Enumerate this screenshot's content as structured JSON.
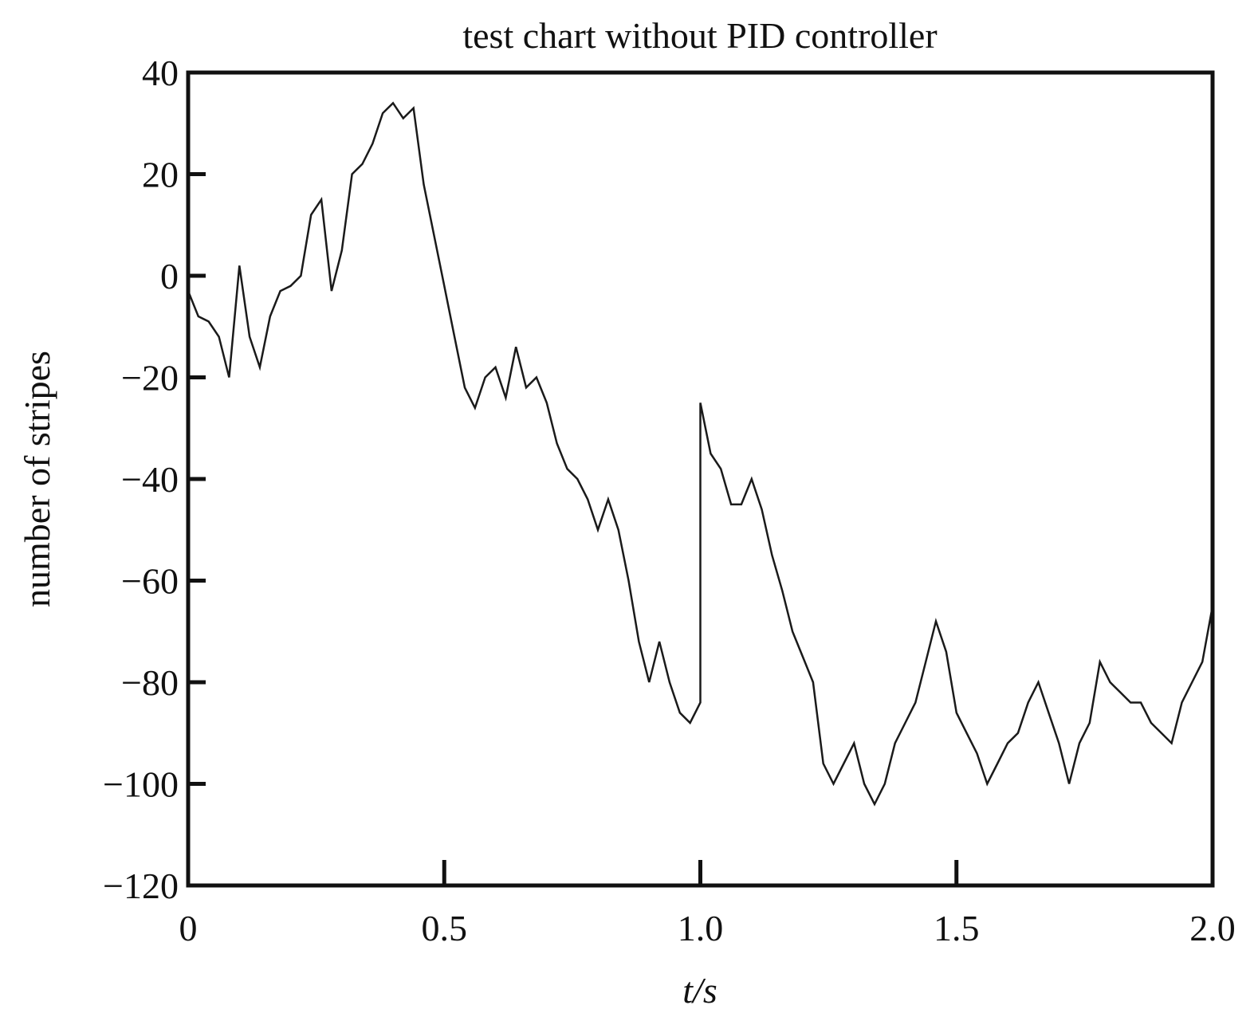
{
  "chart_data": {
    "type": "line",
    "title": "test chart without PID controller",
    "xlabel": "t/s",
    "ylabel": "number of stripes",
    "x": [
      0,
      0.02,
      0.04,
      0.06,
      0.08,
      0.1,
      0.12,
      0.14,
      0.16,
      0.18,
      0.2,
      0.22,
      0.24,
      0.26,
      0.28,
      0.3,
      0.32,
      0.34,
      0.36,
      0.38,
      0.4,
      0.42,
      0.44,
      0.46,
      0.48,
      0.5,
      0.52,
      0.54,
      0.56,
      0.58,
      0.6,
      0.62,
      0.64,
      0.66,
      0.68,
      0.7,
      0.72,
      0.74,
      0.76,
      0.78,
      0.8,
      0.82,
      0.84,
      0.86,
      0.88,
      0.9,
      0.92,
      0.94,
      0.96,
      0.98,
      1,
      1,
      1.02,
      1.04,
      1.06,
      1.08,
      1.1,
      1.12,
      1.14,
      1.16,
      1.18,
      1.2,
      1.22,
      1.24,
      1.26,
      1.28,
      1.3,
      1.32,
      1.34,
      1.36,
      1.38,
      1.4,
      1.42,
      1.44,
      1.46,
      1.48,
      1.5,
      1.52,
      1.54,
      1.56,
      1.58,
      1.6,
      1.62,
      1.64,
      1.66,
      1.68,
      1.7,
      1.72,
      1.74,
      1.76,
      1.78,
      1.8,
      1.82,
      1.84,
      1.86,
      1.88,
      1.9,
      1.92,
      1.94,
      1.96,
      1.98,
      2
    ],
    "series": [
      {
        "color": "#1a1a1a",
        "values": [
          -3,
          -8,
          -9,
          -12,
          -20,
          2,
          -12,
          -18,
          -8,
          -3,
          -2,
          0,
          12,
          15,
          -3,
          5,
          20,
          22,
          26,
          32,
          34,
          31,
          33,
          18,
          8,
          -2,
          -12,
          -22,
          -26,
          -20,
          -18,
          -24,
          -14,
          -22,
          -20,
          -25,
          -33,
          -38,
          -40,
          -44,
          -50,
          -44,
          -50,
          -60,
          -72,
          -80,
          -72,
          -80,
          -86,
          -88,
          -84,
          -25,
          -35,
          -38,
          -45,
          -45,
          -40,
          -46,
          -55,
          -62,
          -70,
          -75,
          -80,
          -96,
          -100,
          -96,
          -92,
          -100,
          -104,
          -100,
          -92,
          -88,
          -84,
          -76,
          -68,
          -74,
          -86,
          -90,
          -94,
          -100,
          -96,
          -92,
          -90,
          -84,
          -80,
          -86,
          -92,
          -100,
          -92,
          -88,
          -76,
          -80,
          -82,
          -84,
          -84,
          -88,
          -90,
          -92,
          -84,
          -80,
          -76,
          -65
        ]
      }
    ],
    "xlim": [
      0,
      2
    ],
    "ylim": [
      -120,
      40
    ],
    "xticks": [
      0,
      0.5,
      {
        "value": 1,
        "label": "1.0"
      },
      1.5,
      {
        "value": 2,
        "label": "2.0"
      }
    ],
    "yticks": [
      {
        "value": -120,
        "label": "−120"
      },
      {
        "value": -100,
        "label": "−100"
      },
      {
        "value": -80,
        "label": "−80"
      },
      {
        "value": -60,
        "label": "−60"
      },
      {
        "value": -40,
        "label": "−40"
      },
      {
        "value": -20,
        "label": "−20"
      },
      0,
      20,
      40
    ],
    "grid": false
  }
}
